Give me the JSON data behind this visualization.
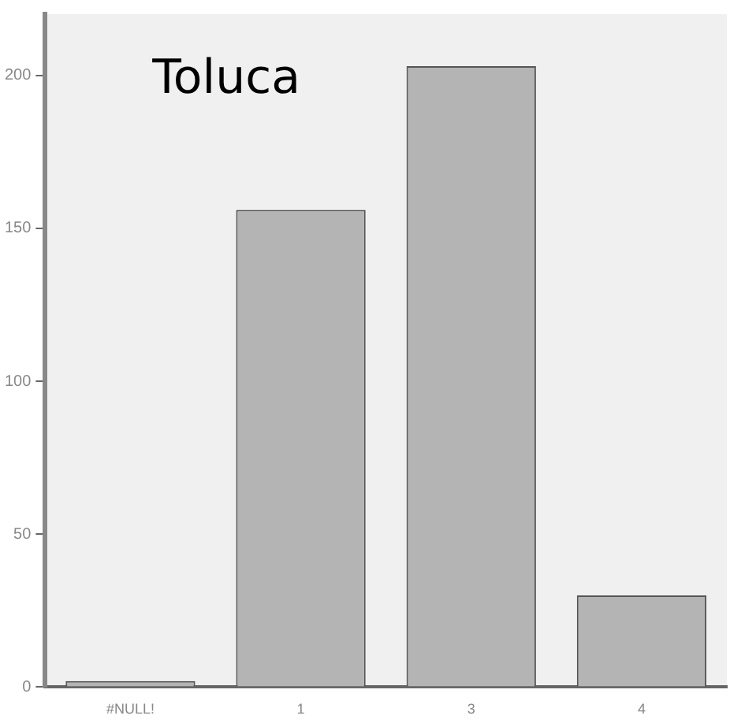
{
  "chart_data": {
    "type": "bar",
    "title": "Toluca",
    "categories": [
      "#NULL!",
      "1",
      "3",
      "4"
    ],
    "values": [
      2,
      156,
      203,
      30
    ],
    "color": "#b4b4b4",
    "ylim": [
      0,
      220
    ],
    "yticks": [
      0,
      50,
      100,
      150,
      200
    ],
    "grid": false,
    "legend": false
  }
}
